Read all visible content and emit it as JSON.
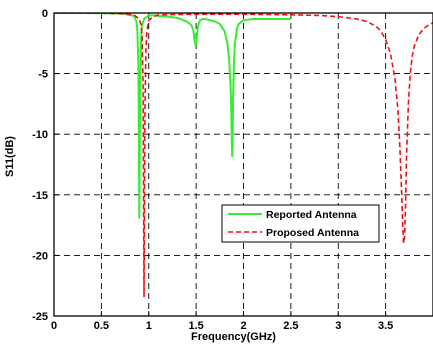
{
  "chart_data": {
    "type": "line",
    "title": "",
    "xlabel": "Frequency(GHz)",
    "ylabel": "S11(dB)",
    "xlim": [
      0,
      4
    ],
    "ylim": [
      -25,
      0
    ],
    "xticks": [
      0,
      0.5,
      1,
      1.5,
      2,
      2.5,
      3,
      3.5
    ],
    "xtick_labels": [
      "0",
      "0.5",
      "1",
      "1.5",
      "2",
      "2.5",
      "3",
      "3.5"
    ],
    "yticks": [
      0,
      -5,
      -10,
      -15,
      -20,
      -25
    ],
    "ytick_labels": [
      "0",
      "-5",
      "-10",
      "-15",
      "-20",
      "-25"
    ],
    "grid": true,
    "grid_style": "dashed",
    "legend_position": "lower-right",
    "series": [
      {
        "name": "Reported Antenna",
        "color": "#33ee33",
        "line_style": "solid",
        "x": [
          0,
          0.3,
          0.5,
          0.7,
          0.8,
          0.85,
          0.87,
          0.88,
          0.89,
          0.895,
          0.9,
          0.905,
          0.91,
          0.92,
          0.93,
          0.95,
          0.98,
          1.0,
          1.05,
          1.1,
          1.2,
          1.3,
          1.4,
          1.45,
          1.47,
          1.48,
          1.49,
          1.5,
          1.51,
          1.52,
          1.54,
          1.57,
          1.6,
          1.65,
          1.7,
          1.75,
          1.8,
          1.83,
          1.85,
          1.86,
          1.87,
          1.875,
          1.88,
          1.885,
          1.89,
          1.9,
          1.91,
          1.93,
          1.95,
          2.0,
          2.1,
          2.2,
          2.3,
          2.4,
          2.5
        ],
        "y": [
          0,
          0,
          -0.02,
          -0.05,
          -0.1,
          -0.3,
          -0.7,
          -1.5,
          -4.0,
          -9.0,
          -16.9,
          -11.0,
          -6.0,
          -2.0,
          -1.0,
          -0.5,
          -0.3,
          -0.2,
          -0.2,
          -0.25,
          -0.3,
          -0.4,
          -0.7,
          -1.0,
          -1.4,
          -2.0,
          -2.6,
          -2.6,
          -1.8,
          -1.1,
          -0.6,
          -0.5,
          -0.5,
          -0.6,
          -0.7,
          -0.9,
          -1.5,
          -2.5,
          -4.0,
          -5.5,
          -7.5,
          -10.0,
          -11.8,
          -10.5,
          -7.0,
          -4.0,
          -2.5,
          -1.3,
          -0.9,
          -0.6,
          -0.5,
          -0.5,
          -0.5,
          -0.5,
          -0.5
        ]
      },
      {
        "name": "Proposed Antenna",
        "color": "#ee1111",
        "line_style": "dashed",
        "x": [
          0,
          0.3,
          0.5,
          0.7,
          0.85,
          0.9,
          0.92,
          0.93,
          0.94,
          0.945,
          0.95,
          0.955,
          0.96,
          0.97,
          0.98,
          1.0,
          1.05,
          1.1,
          1.5,
          2.0,
          2.5,
          2.8,
          3.0,
          3.2,
          3.3,
          3.4,
          3.45,
          3.5,
          3.55,
          3.6,
          3.63,
          3.65,
          3.67,
          3.68,
          3.69,
          3.7,
          3.71,
          3.72,
          3.74,
          3.76,
          3.78,
          3.8,
          3.85,
          3.9,
          3.95,
          4.0
        ],
        "y": [
          0,
          0,
          0,
          -0.05,
          -0.2,
          -0.5,
          -1.0,
          -2.0,
          -6.0,
          -14.0,
          -23.4,
          -15.0,
          -8.0,
          -3.0,
          -1.5,
          -0.6,
          -0.3,
          -0.15,
          -0.1,
          -0.1,
          -0.15,
          -0.2,
          -0.3,
          -0.5,
          -0.7,
          -1.1,
          -1.5,
          -2.2,
          -3.3,
          -5.5,
          -8.0,
          -11.0,
          -15.0,
          -17.5,
          -19.0,
          -18.5,
          -16.0,
          -12.0,
          -7.5,
          -5.0,
          -3.6,
          -2.8,
          -1.8,
          -1.3,
          -1.0,
          -0.8
        ]
      }
    ]
  }
}
